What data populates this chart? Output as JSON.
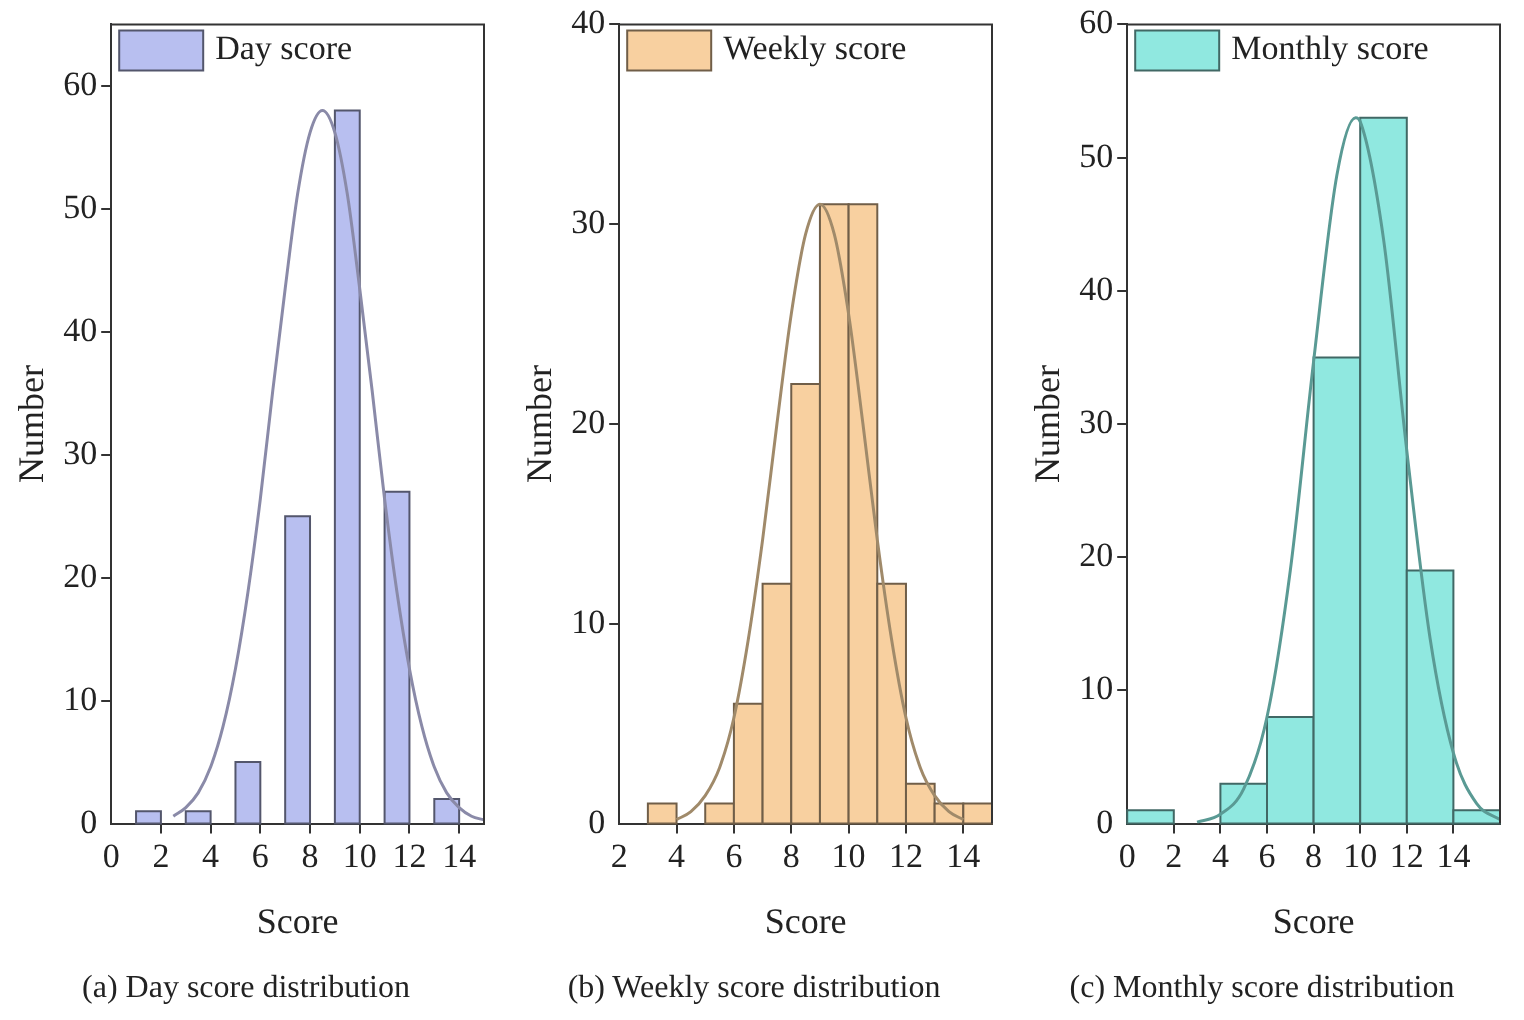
{
  "chart_data": [
    {
      "type": "histogram",
      "title": "(a) Day score distribution",
      "xlabel": "Score",
      "ylabel": "Number",
      "legend": "top left",
      "xlim": [
        0,
        15
      ],
      "xticks": [
        0,
        2,
        4,
        6,
        8,
        10,
        12,
        14
      ],
      "ylim": [
        0,
        65
      ],
      "yticks": [
        0,
        10,
        20,
        30,
        40,
        50,
        60
      ],
      "series": [
        {
          "name": "Day score",
          "color": "#b8bff0",
          "bins": [
            1,
            2,
            3,
            4,
            5,
            6,
            7,
            8,
            9,
            10,
            11,
            12,
            13,
            14
          ],
          "values": [
            1,
            0,
            1,
            0,
            5,
            0,
            25,
            0,
            58,
            0,
            27,
            0,
            2
          ]
        },
        {
          "type": "line",
          "color": "#8a8aa8",
          "x": [
            2.5,
            3,
            3.5,
            4,
            4.5,
            5,
            5.5,
            6,
            6.5,
            7,
            7.5,
            8,
            8.5,
            9,
            9.5,
            10,
            10.5,
            11,
            11.5,
            12,
            12.5,
            13,
            13.5,
            14,
            14.5,
            15
          ],
          "values": [
            0.6,
            1.3,
            2.5,
            4.6,
            7.9,
            12.6,
            18.8,
            26.4,
            35.2,
            43.5,
            51.2,
            56.2,
            58,
            56.2,
            51.2,
            43.5,
            35.2,
            26.4,
            18.8,
            12.6,
            7.9,
            4.6,
            2.5,
            1.3,
            0.6,
            0.3
          ]
        }
      ]
    },
    {
      "type": "histogram",
      "title": "(b) Weekly score distribution",
      "xlabel": "Score",
      "ylabel": "Number",
      "legend": "top left",
      "xlim": [
        2,
        15
      ],
      "xticks": [
        2,
        4,
        6,
        8,
        10,
        12,
        14
      ],
      "ylim": [
        0,
        40
      ],
      "yticks": [
        0,
        10,
        20,
        30,
        40
      ],
      "series": [
        {
          "name": "Weekly score",
          "color": "#f8d0a0",
          "bins": [
            3,
            4,
            5,
            6,
            7,
            8,
            9,
            10,
            11,
            12,
            13,
            14,
            15
          ],
          "values": [
            1,
            0,
            1,
            6,
            12,
            22,
            31,
            31,
            12,
            2,
            1,
            1
          ]
        },
        {
          "type": "line",
          "color": "#a08a6a",
          "x": [
            4,
            4.5,
            5,
            5.5,
            6,
            6.5,
            7,
            7.5,
            8,
            8.5,
            9,
            9.5,
            10,
            10.5,
            11,
            11.5,
            12,
            12.5,
            13,
            13.5,
            14
          ],
          "values": [
            0.2,
            0.6,
            1.4,
            2.8,
            5.3,
            9.2,
            14.2,
            20,
            25.5,
            29.5,
            31,
            29.5,
            25.5,
            20,
            14.2,
            9.2,
            5.3,
            2.8,
            1.4,
            0.6,
            0.2
          ]
        }
      ]
    },
    {
      "type": "histogram",
      "title": "(c) Monthly score distribution",
      "xlabel": "Score",
      "ylabel": "Number",
      "legend": "top left",
      "xlim": [
        0,
        16
      ],
      "xticks": [
        0,
        2,
        4,
        6,
        8,
        10,
        12,
        14
      ],
      "ylim": [
        0,
        60
      ],
      "yticks": [
        0,
        10,
        20,
        30,
        40,
        50,
        60
      ],
      "series": [
        {
          "name": "Monthly score",
          "color": "#90e8e0",
          "bins": [
            0,
            2,
            4,
            6,
            8,
            10,
            12,
            14,
            16
          ],
          "values": [
            1,
            0,
            3,
            8,
            35,
            53,
            19,
            1
          ]
        },
        {
          "type": "line",
          "color": "#5a9a94",
          "x": [
            3,
            4,
            5,
            6,
            7,
            8,
            9,
            9.8,
            10,
            11,
            12,
            13,
            14,
            15,
            16
          ],
          "values": [
            0.1,
            0.7,
            2.6,
            8,
            19,
            34.7,
            48.7,
            53,
            52.7,
            43.9,
            28,
            13.9,
            5.3,
            1.5,
            0.3
          ]
        }
      ]
    }
  ]
}
